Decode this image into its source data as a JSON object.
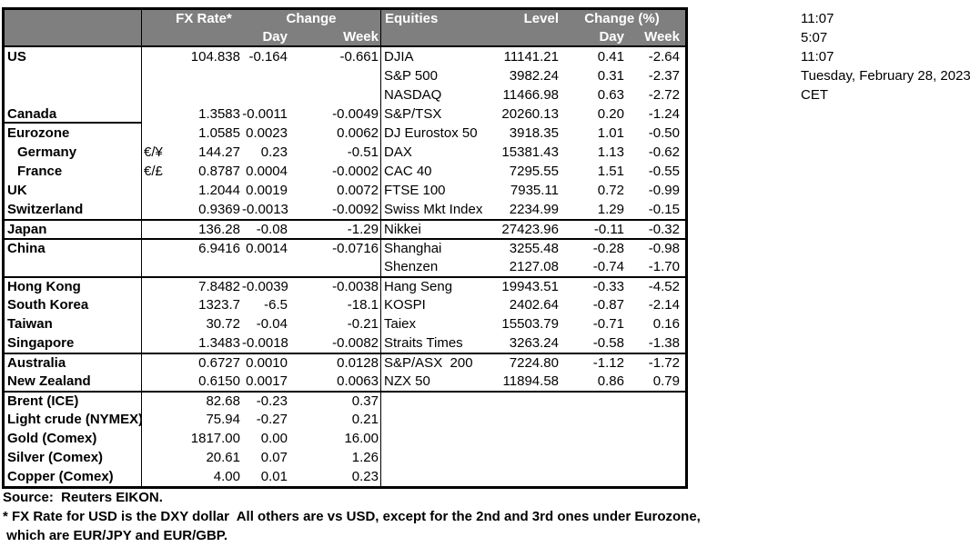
{
  "table": {
    "header": {
      "fx_rate": "FX Rate*",
      "fx_change": "Change",
      "fx_day": "Day",
      "fx_week": "Week",
      "equities": "Equities",
      "level": "Level",
      "eq_change": "Change (%)",
      "eq_day": "Day",
      "eq_week": "Week"
    },
    "rows": [
      {
        "country": "US",
        "pair": "",
        "rate": "104.838",
        "day": "-0.164",
        "week": "-0.661",
        "index": "DJIA",
        "level": "11141.21",
        "eday": "0.41",
        "eweek": "-2.64"
      },
      {
        "country": "",
        "pair": "",
        "rate": "",
        "day": "",
        "week": "",
        "index": "S&P 500",
        "level": "3982.24",
        "eday": "0.31",
        "eweek": "-2.37"
      },
      {
        "country": "",
        "pair": "",
        "rate": "",
        "day": "",
        "week": "",
        "index": "NASDAQ",
        "level": "11466.98",
        "eday": "0.63",
        "eweek": "-2.72"
      },
      {
        "country": "Canada",
        "pair": "",
        "rate": "1.3583",
        "day": "-0.0011",
        "week": "-0.0049",
        "index": "S&P/TSX",
        "level": "20260.13",
        "eday": "0.20",
        "eweek": "-1.24",
        "label_bottom": true
      },
      {
        "country": "Eurozone",
        "pair": "",
        "rate": "1.0585",
        "day": "0.0023",
        "week": "0.0062",
        "index": "DJ Eurostox 50",
        "level": "3918.35",
        "eday": "1.01",
        "eweek": "-0.50"
      },
      {
        "country": "Germany",
        "pair": "€/¥",
        "rate": "144.27",
        "day": "0.23",
        "week": "-0.51",
        "index": "DAX",
        "level": "15381.43",
        "eday": "1.13",
        "eweek": "-0.62",
        "indent": true
      },
      {
        "country": "France",
        "pair": "€/£",
        "rate": "0.8787",
        "day": "0.0004",
        "week": "-0.0002",
        "index": "CAC 40",
        "level": "7295.55",
        "eday": "1.51",
        "eweek": "-0.55",
        "indent": true
      },
      {
        "country": "UK",
        "pair": "",
        "rate": "1.2044",
        "day": "0.0019",
        "week": "0.0072",
        "index": "FTSE 100",
        "level": "7935.11",
        "eday": "0.72",
        "eweek": "-0.99"
      },
      {
        "country": "Switzerland",
        "pair": "",
        "rate": "0.9369",
        "day": "-0.0013",
        "week": "-0.0092",
        "index": "Swiss Mkt Index",
        "level": "2234.99",
        "eday": "1.29",
        "eweek": "-0.15"
      },
      {
        "country": "Japan",
        "pair": "",
        "rate": "136.28",
        "day": "-0.08",
        "week": "-1.29",
        "index": "Nikkei",
        "level": "27423.96",
        "eday": "-0.11",
        "eweek": "-0.32",
        "sep": true
      },
      {
        "country": "China",
        "pair": "",
        "rate": "6.9416",
        "day": "0.0014",
        "week": "-0.0716",
        "index": "Shanghai",
        "level": "3255.48",
        "eday": "-0.28",
        "eweek": "-0.98",
        "sep": true
      },
      {
        "country": "",
        "pair": "",
        "rate": "",
        "day": "",
        "week": "",
        "index": "Shenzen",
        "level": "2127.08",
        "eday": "-0.74",
        "eweek": "-1.70"
      },
      {
        "country": "Hong Kong",
        "pair": "",
        "rate": "7.8482",
        "day": "-0.0039",
        "week": "-0.0038",
        "index": "Hang Seng",
        "level": "19943.51",
        "eday": "-0.33",
        "eweek": "-4.52",
        "sep": true
      },
      {
        "country": "South Korea",
        "pair": "",
        "rate": "1323.7",
        "day": "-6.5",
        "week": "-18.1",
        "index": "KOSPI",
        "level": "2402.64",
        "eday": "-0.87",
        "eweek": "-2.14"
      },
      {
        "country": "Taiwan",
        "pair": "",
        "rate": "30.72",
        "day": "-0.04",
        "week": "-0.21",
        "index": "Taiex",
        "level": "15503.79",
        "eday": "-0.71",
        "eweek": "0.16"
      },
      {
        "country": "Singapore",
        "pair": "",
        "rate": "1.3483",
        "day": "-0.0018",
        "week": "-0.0082",
        "index": "Straits Times",
        "level": "3263.24",
        "eday": "-0.58",
        "eweek": "-1.38"
      },
      {
        "country": "Australia",
        "pair": "",
        "rate": "0.6727",
        "day": "0.0010",
        "week": "0.0128",
        "index": "S&P/ASX  200",
        "level": "7224.80",
        "eday": "-1.12",
        "eweek": "-1.72",
        "sep": true
      },
      {
        "country": "New Zealand",
        "pair": "",
        "rate": "0.6150",
        "day": "0.0017",
        "week": "0.0063",
        "index": "NZX 50",
        "level": "11894.58",
        "eday": "0.86",
        "eweek": "0.79"
      },
      {
        "country": "Brent (ICE)",
        "pair": "",
        "rate": "82.68",
        "day": "-0.23",
        "week": "0.37",
        "index": "",
        "level": "",
        "eday": "",
        "eweek": "",
        "sep": true
      },
      {
        "country": "Light crude (NYMEX)",
        "pair": "",
        "rate": "75.94",
        "day": "-0.27",
        "week": "0.21",
        "index": "",
        "level": "",
        "eday": "",
        "eweek": ""
      },
      {
        "country": "Gold (Comex)",
        "pair": "",
        "rate": "1817.00",
        "day": "0.00",
        "week": "16.00",
        "index": "",
        "level": "",
        "eday": "",
        "eweek": ""
      },
      {
        "country": "Silver (Comex)",
        "pair": "",
        "rate": "20.61",
        "day": "0.07",
        "week": "1.26",
        "index": "",
        "level": "",
        "eday": "",
        "eweek": ""
      },
      {
        "country": "Copper (Comex)",
        "pair": "",
        "rate": "4.00",
        "day": "0.01",
        "week": "0.23",
        "index": "",
        "level": "",
        "eday": "",
        "eweek": ""
      }
    ]
  },
  "timestamps": [
    "11:07",
    "5:07",
    "11:07",
    "Tuesday, February 28, 2023",
    "CET"
  ],
  "footer": {
    "source": "Source:  Reuters EIKON.",
    "footnote_line1": "* FX Rate for USD is the DXY dollar  All others are vs USD, except for the 2nd and 3rd ones under Eurozone,",
    "footnote_line2": " which are EUR/JPY and EUR/GBP."
  },
  "colors": {
    "header_bg": "#7f7f7f",
    "header_text": "#ffffff",
    "border": "#000000"
  }
}
